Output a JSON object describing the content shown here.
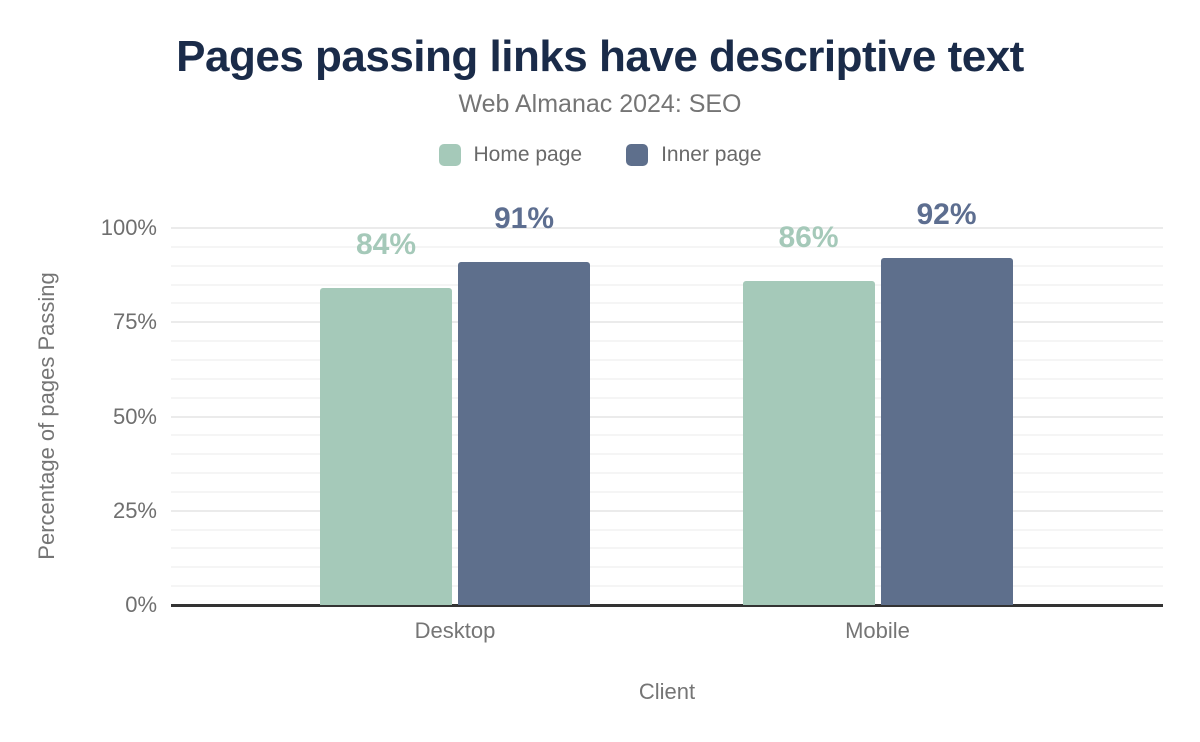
{
  "title": "Pages passing links have descriptive text",
  "subtitle": "Web Almanac 2024: SEO",
  "chart_data": {
    "type": "bar",
    "title": "Pages passing links have descriptive text",
    "subtitle": "Web Almanac 2024: SEO",
    "categories": [
      "Desktop",
      "Mobile"
    ],
    "series": [
      {
        "name": "Home page",
        "color": "#a5c9b9",
        "label_color": "#a5c9b9",
        "values": [
          84,
          86
        ]
      },
      {
        "name": "Inner page",
        "color": "#5e6f8c",
        "label_color": "#5d6e90",
        "values": [
          91,
          92
        ]
      }
    ],
    "value_suffix": "%",
    "xlabel": "Client",
    "ylabel": "Percentage of pages Passing",
    "ylim": [
      0,
      100
    ],
    "y_ticks": [
      {
        "value": 0,
        "label": "0%"
      },
      {
        "value": 25,
        "label": "25%"
      },
      {
        "value": 50,
        "label": "50%"
      },
      {
        "value": 75,
        "label": "75%"
      },
      {
        "value": 100,
        "label": "100%"
      }
    ],
    "grid": {
      "orientation": "horizontal",
      "minor_step": 5,
      "major_step": 25
    },
    "legend_position": "top"
  },
  "colors": {
    "background": "#ffffff",
    "title": "#1a2b49",
    "subtitle": "#757575",
    "axis_text": "#6f6f6f",
    "axis_line": "#333333",
    "grid_minor": "#f5f5f5",
    "grid_major": "#ebebeb"
  }
}
